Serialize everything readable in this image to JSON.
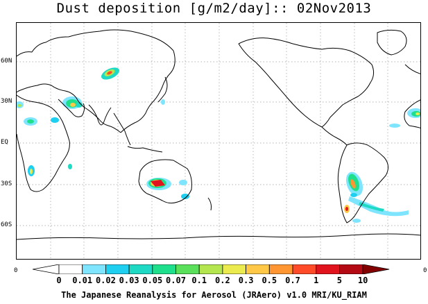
{
  "title": "Dust deposition [g/m2/day]:: 02Nov2013",
  "latitude_labels": [
    "60N",
    "30N",
    "EQ",
    "30S",
    "60S"
  ],
  "edge_labels": {
    "left": "0",
    "right": "0"
  },
  "colorbar": {
    "labels": [
      "0",
      "0.01",
      "0.02",
      "0.03",
      "0.05",
      "0.07",
      "0.1",
      "0.2",
      "0.3",
      "0.5",
      "0.7",
      "1",
      "5",
      "10"
    ],
    "colors": [
      "#ffffff",
      "#ffffff",
      "#7fe5ff",
      "#1ecff0",
      "#1ed9c4",
      "#1ee08c",
      "#5ae05a",
      "#b4e650",
      "#ebeb50",
      "#ffc846",
      "#ff9632",
      "#ff4b28",
      "#e1141e",
      "#b40a14",
      "#820000"
    ]
  },
  "footer": "The Japanese Reanalysis for Aerosol (JRAero) v1.0 MRI/KU_RIAM"
}
